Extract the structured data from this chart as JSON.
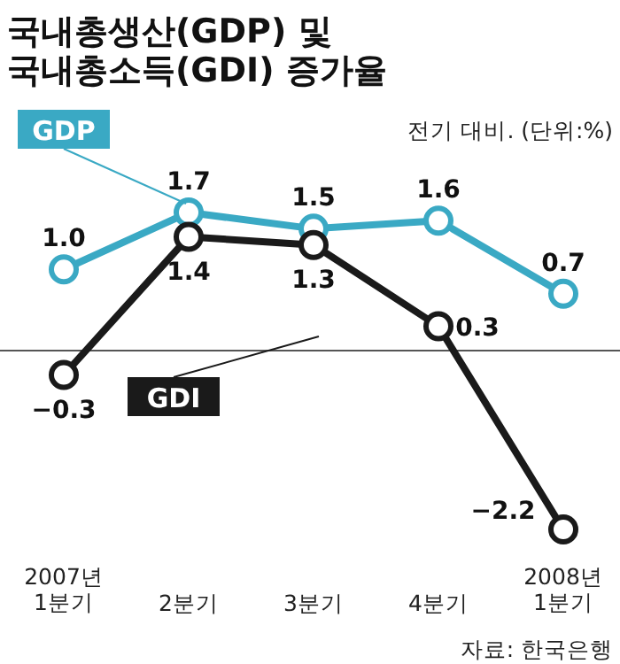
{
  "chart_data": {
    "type": "line",
    "title": "국내총생산(GDP) 및\n국내총소득(GDI) 증가율",
    "subtitle": "전기 대비. (단위:%)",
    "categories": [
      "2007년\n1분기",
      "2분기",
      "3분기",
      "4분기",
      "2008년\n1분기"
    ],
    "series": [
      {
        "name": "GDP",
        "color": "#3aa9c4",
        "values": [
          1.0,
          1.7,
          1.5,
          1.6,
          0.7
        ],
        "value_labels": [
          "1.0",
          "1.7",
          "1.5",
          "1.6",
          "0.7"
        ]
      },
      {
        "name": "GDI",
        "color": "#1a1a1a",
        "values": [
          -0.3,
          1.4,
          1.3,
          0.3,
          -2.2
        ],
        "value_labels": [
          "−0.3",
          "1.4",
          "1.3",
          "0.3",
          "−2.2"
        ]
      }
    ],
    "tick_labels": "x",
    "marker": "circle",
    "ref_lines": [
      {
        "axis": "y",
        "value": 0,
        "color": "#555555"
      }
    ],
    "annotations": [
      "자료: 한국은행"
    ]
  }
}
